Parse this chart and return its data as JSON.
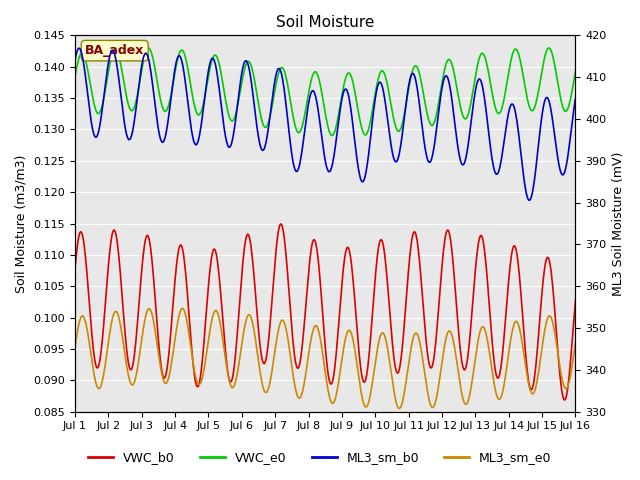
{
  "title": "Soil Moisture",
  "xlabel": "",
  "ylabel_left": "Soil Moisture (m3/m3)",
  "ylabel_right": "ML3 Soil Moisture (mV)",
  "ylim_left": [
    0.085,
    0.145
  ],
  "ylim_right": [
    330,
    420
  ],
  "xlim": [
    0,
    15
  ],
  "xtick_labels": [
    "Jul 1",
    "Jul 2",
    "Jul 3",
    "Jul 4",
    "Jul 5",
    "Jul 6",
    "Jul 7",
    "Jul 8",
    "Jul 9",
    "Jul 10",
    "Jul 11",
    "Jul 12",
    "Jul 13",
    "Jul 14",
    "Jul 15",
    "Jul 16"
  ],
  "background_color": "#e8e8e8",
  "legend_labels": [
    "VWC_b0",
    "VWC_e0",
    "ML3_sm_b0",
    "ML3_sm_e0"
  ],
  "legend_colors": [
    "#dd0000",
    "#00cc00",
    "#0000cc",
    "#cc8800"
  ],
  "annotation_text": "BA_adex",
  "annotation_bg": "#ffffcc",
  "annotation_fg": "#880000"
}
